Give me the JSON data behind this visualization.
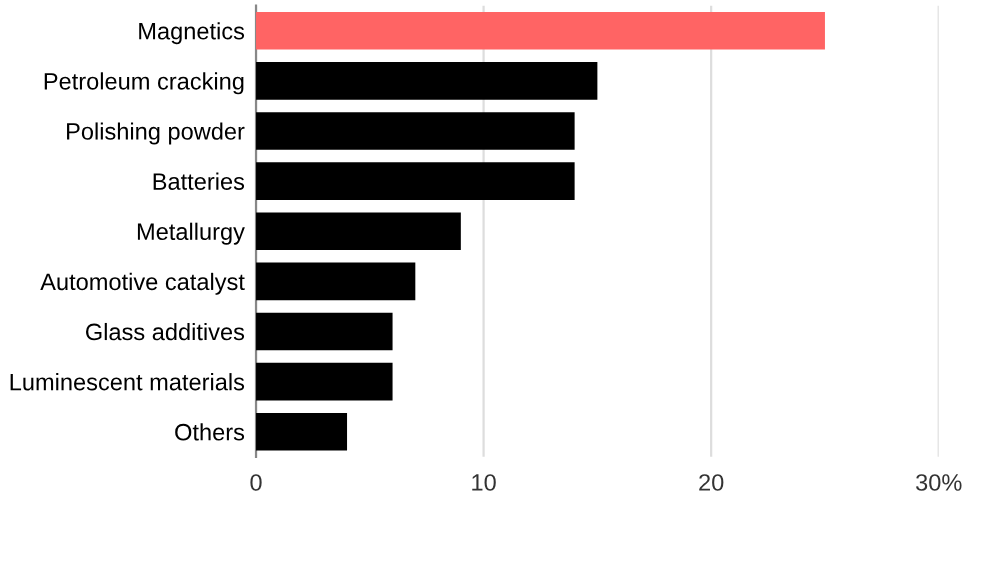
{
  "chart_data": {
    "type": "bar",
    "orientation": "horizontal",
    "categories": [
      "Magnetics",
      "Petroleum cracking",
      "Polishing powder",
      "Batteries",
      "Metallurgy",
      "Automotive catalyst",
      "Glass additives",
      "Luminescent materials",
      "Others"
    ],
    "values": [
      25,
      15,
      14,
      14,
      9,
      7,
      6,
      6,
      4
    ],
    "colors": [
      "#ff6464",
      "#000000",
      "#000000",
      "#000000",
      "#000000",
      "#000000",
      "#000000",
      "#000000",
      "#000000"
    ],
    "xlim": [
      0,
      30
    ],
    "xticks": [
      0,
      10,
      20,
      {
        "value": 30,
        "label": "30%"
      }
    ],
    "grid": "x"
  }
}
